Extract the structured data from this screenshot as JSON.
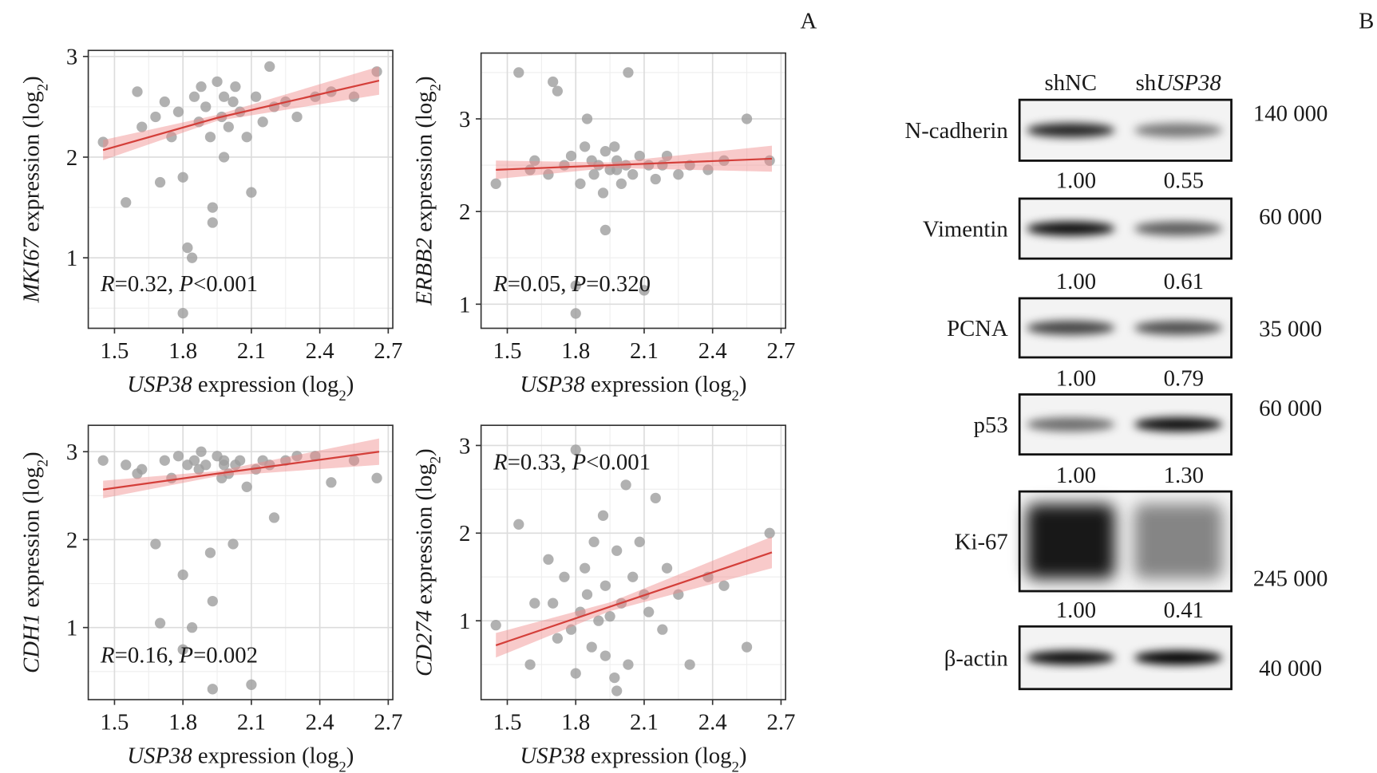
{
  "chart_data": [
    {
      "type": "scatter",
      "color": "#9e9e9e",
      "fit_color": "#d43f3a",
      "band_color": "#f08a8a",
      "grid": true,
      "annotation_position": "bottom-left",
      "x_label": {
        "gene": "USP38",
        "text": " expression (log",
        "subscript": "2",
        "close": ")"
      },
      "y_label": {
        "gene": "MKI67",
        "text": " expression (log",
        "subscript": "2",
        "close": ")"
      },
      "annotation": {
        "r_symbol": "R",
        "r_text": "=0.32, ",
        "p_symbol": "P",
        "p_text": "<0.001"
      },
      "xlim": [
        1.385,
        2.72
      ],
      "ylim": [
        0.3,
        3.06
      ],
      "xticks": [
        1.5,
        1.8,
        2.1,
        2.4,
        2.7
      ],
      "yticks": [
        1,
        2,
        3
      ],
      "x": [
        1.45,
        1.55,
        1.6,
        1.62,
        1.68,
        1.72,
        1.75,
        1.78,
        1.8,
        1.8,
        1.82,
        1.84,
        1.85,
        1.87,
        1.88,
        1.9,
        1.92,
        1.93,
        1.93,
        1.95,
        1.97,
        1.98,
        2.0,
        2.02,
        2.03,
        2.05,
        2.08,
        2.1,
        2.12,
        2.15,
        2.18,
        2.2,
        2.25,
        2.3,
        2.38,
        2.45,
        2.55,
        2.65,
        1.7,
        1.98
      ],
      "y": [
        2.15,
        1.55,
        2.65,
        2.3,
        2.4,
        2.55,
        2.2,
        2.45,
        1.8,
        0.45,
        1.1,
        1.0,
        2.6,
        2.35,
        2.7,
        2.5,
        2.2,
        1.5,
        1.35,
        2.75,
        2.4,
        2.6,
        2.3,
        2.55,
        2.7,
        2.45,
        2.2,
        1.65,
        2.6,
        2.35,
        2.9,
        2.5,
        2.55,
        2.4,
        2.6,
        2.65,
        2.6,
        2.85,
        1.75,
        2.0
      ],
      "fit": {
        "x": [
          1.45,
          1.95,
          2.66
        ],
        "y": [
          2.07,
          2.39,
          2.76
        ],
        "ci_low": [
          1.97,
          2.36,
          2.62
        ],
        "ci_high": [
          2.17,
          2.42,
          2.9
        ]
      }
    },
    {
      "type": "scatter",
      "color": "#9e9e9e",
      "fit_color": "#d43f3a",
      "band_color": "#f08a8a",
      "grid": true,
      "annotation_position": "bottom-left",
      "x_label": {
        "gene": "USP38",
        "text": " expression (log",
        "subscript": "2",
        "close": ")"
      },
      "y_label": {
        "gene": "ERBB2",
        "text": " expression (log",
        "subscript": "2",
        "close": ")"
      },
      "annotation": {
        "r_symbol": "R",
        "r_text": "=0.05, ",
        "p_symbol": "P",
        "p_text": "=0.320"
      },
      "xlim": [
        1.385,
        2.72
      ],
      "ylim": [
        0.74,
        3.71
      ],
      "xticks": [
        1.5,
        1.8,
        2.1,
        2.4,
        2.7
      ],
      "yticks": [
        1,
        2,
        3
      ],
      "x": [
        1.45,
        1.55,
        1.6,
        1.62,
        1.68,
        1.72,
        1.75,
        1.78,
        1.8,
        1.8,
        1.82,
        1.84,
        1.85,
        1.87,
        1.88,
        1.9,
        1.92,
        1.93,
        1.93,
        1.95,
        1.97,
        1.98,
        2.0,
        2.02,
        2.03,
        2.05,
        2.08,
        2.1,
        2.12,
        2.15,
        2.18,
        2.2,
        2.25,
        2.3,
        2.38,
        2.45,
        2.55,
        2.65,
        1.7,
        1.98
      ],
      "y": [
        2.3,
        3.5,
        2.45,
        2.55,
        2.4,
        3.3,
        2.5,
        2.6,
        1.2,
        0.9,
        2.3,
        2.7,
        3.0,
        2.55,
        2.4,
        2.5,
        2.2,
        1.8,
        2.65,
        2.45,
        2.7,
        2.55,
        2.3,
        2.5,
        3.5,
        2.4,
        2.6,
        1.15,
        2.5,
        2.35,
        2.5,
        2.6,
        2.4,
        2.5,
        2.45,
        2.55,
        3.0,
        2.55,
        3.4,
        2.45
      ],
      "fit": {
        "x": [
          1.45,
          1.95,
          2.66
        ],
        "y": [
          2.45,
          2.5,
          2.57
        ],
        "ci_low": [
          2.35,
          2.47,
          2.43
        ],
        "ci_high": [
          2.55,
          2.53,
          2.71
        ]
      }
    },
    {
      "type": "scatter",
      "color": "#9e9e9e",
      "fit_color": "#d43f3a",
      "band_color": "#f08a8a",
      "grid": true,
      "annotation_position": "bottom-left",
      "x_label": {
        "gene": "USP38",
        "text": " expression (log",
        "subscript": "2",
        "close": ")"
      },
      "y_label": {
        "gene": "CDH1",
        "text": " expression (log",
        "subscript": "2",
        "close": ")"
      },
      "annotation": {
        "r_symbol": "R",
        "r_text": "=0.16, ",
        "p_symbol": "P",
        "p_text": "=0.002"
      },
      "xlim": [
        1.385,
        2.72
      ],
      "ylim": [
        0.18,
        3.3
      ],
      "xticks": [
        1.5,
        1.8,
        2.1,
        2.4,
        2.7
      ],
      "yticks": [
        1,
        2,
        3
      ],
      "x": [
        1.45,
        1.55,
        1.6,
        1.62,
        1.68,
        1.72,
        1.75,
        1.78,
        1.8,
        1.8,
        1.82,
        1.84,
        1.85,
        1.87,
        1.88,
        1.9,
        1.92,
        1.93,
        1.93,
        1.95,
        1.97,
        1.98,
        2.0,
        2.02,
        2.03,
        2.05,
        2.08,
        2.1,
        2.12,
        2.15,
        2.18,
        2.2,
        2.25,
        2.3,
        2.38,
        2.45,
        2.55,
        2.65,
        1.7,
        1.98
      ],
      "y": [
        2.9,
        2.85,
        2.75,
        2.8,
        1.95,
        2.9,
        2.7,
        2.95,
        1.6,
        0.75,
        2.85,
        1.0,
        2.9,
        2.8,
        3.0,
        2.85,
        1.85,
        0.3,
        1.3,
        2.95,
        2.7,
        2.9,
        2.75,
        1.95,
        2.85,
        2.9,
        2.6,
        0.35,
        2.8,
        2.9,
        2.85,
        2.25,
        2.9,
        2.95,
        2.95,
        2.65,
        2.9,
        2.7,
        1.05,
        2.85
      ],
      "fit": {
        "x": [
          1.45,
          1.95,
          2.66
        ],
        "y": [
          2.57,
          2.75,
          3.0
        ],
        "ci_low": [
          2.47,
          2.72,
          2.85
        ],
        "ci_high": [
          2.67,
          2.78,
          3.15
        ]
      }
    },
    {
      "type": "scatter",
      "color": "#9e9e9e",
      "fit_color": "#d43f3a",
      "band_color": "#f08a8a",
      "grid": true,
      "annotation_position": "top-left",
      "x_label": {
        "gene": "USP38",
        "text": " expression (log",
        "subscript": "2",
        "close": ")"
      },
      "y_label": {
        "gene": "CD274",
        "text": " expression (log",
        "subscript": "2",
        "close": ")"
      },
      "annotation": {
        "r_symbol": "R",
        "r_text": "=0.33, ",
        "p_symbol": "P",
        "p_text": "<0.001"
      },
      "xlim": [
        1.385,
        2.72
      ],
      "ylim": [
        0.1,
        3.23
      ],
      "xticks": [
        1.5,
        1.8,
        2.1,
        2.4,
        2.7
      ],
      "yticks": [
        1,
        2,
        3
      ],
      "x": [
        1.45,
        1.55,
        1.6,
        1.62,
        1.68,
        1.72,
        1.75,
        1.78,
        1.8,
        1.8,
        1.82,
        1.84,
        1.85,
        1.87,
        1.88,
        1.9,
        1.92,
        1.93,
        1.93,
        1.95,
        1.97,
        1.98,
        2.0,
        2.02,
        2.03,
        2.05,
        2.08,
        2.1,
        2.12,
        2.15,
        2.18,
        2.2,
        2.25,
        2.3,
        2.38,
        2.45,
        2.55,
        2.65,
        1.7,
        1.98
      ],
      "y": [
        0.95,
        2.1,
        0.5,
        1.2,
        1.7,
        0.8,
        1.5,
        0.9,
        2.95,
        0.4,
        1.1,
        1.6,
        1.3,
        0.7,
        1.9,
        1.0,
        2.2,
        0.6,
        1.4,
        1.05,
        0.35,
        1.8,
        1.2,
        2.55,
        0.5,
        1.5,
        1.9,
        1.3,
        1.1,
        2.4,
        0.9,
        1.6,
        1.3,
        0.5,
        1.5,
        1.4,
        0.7,
        2.0,
        1.2,
        0.2
      ],
      "fit": {
        "x": [
          1.45,
          1.95,
          2.66
        ],
        "y": [
          0.72,
          1.16,
          1.78
        ],
        "ci_low": [
          0.58,
          1.11,
          1.6
        ],
        "ci_high": [
          0.86,
          1.21,
          1.96
        ]
      }
    }
  ],
  "panel_a": "A",
  "panel_b": "B",
  "blot": {
    "lane_1": "shNC",
    "lane_2_prefix": "sh",
    "lane_2_gene": "USP38",
    "rows": [
      {
        "protein": "N-cadherin",
        "mw": "140 000",
        "quant": [
          "1.00",
          "0.55"
        ]
      },
      {
        "protein": "Vimentin",
        "mw": "60 000",
        "quant": [
          "1.00",
          "0.61"
        ]
      },
      {
        "protein": "PCNA",
        "mw": "35 000",
        "quant": [
          "1.00",
          "0.79"
        ]
      },
      {
        "protein": "p53",
        "mw": "60 000",
        "quant": [
          "1.00",
          "1.30"
        ]
      },
      {
        "protein": "Ki-67",
        "mw": "245 000",
        "quant": [
          "1.00",
          "0.41"
        ]
      },
      {
        "protein": "β-actin",
        "mw": "40 000"
      }
    ]
  }
}
